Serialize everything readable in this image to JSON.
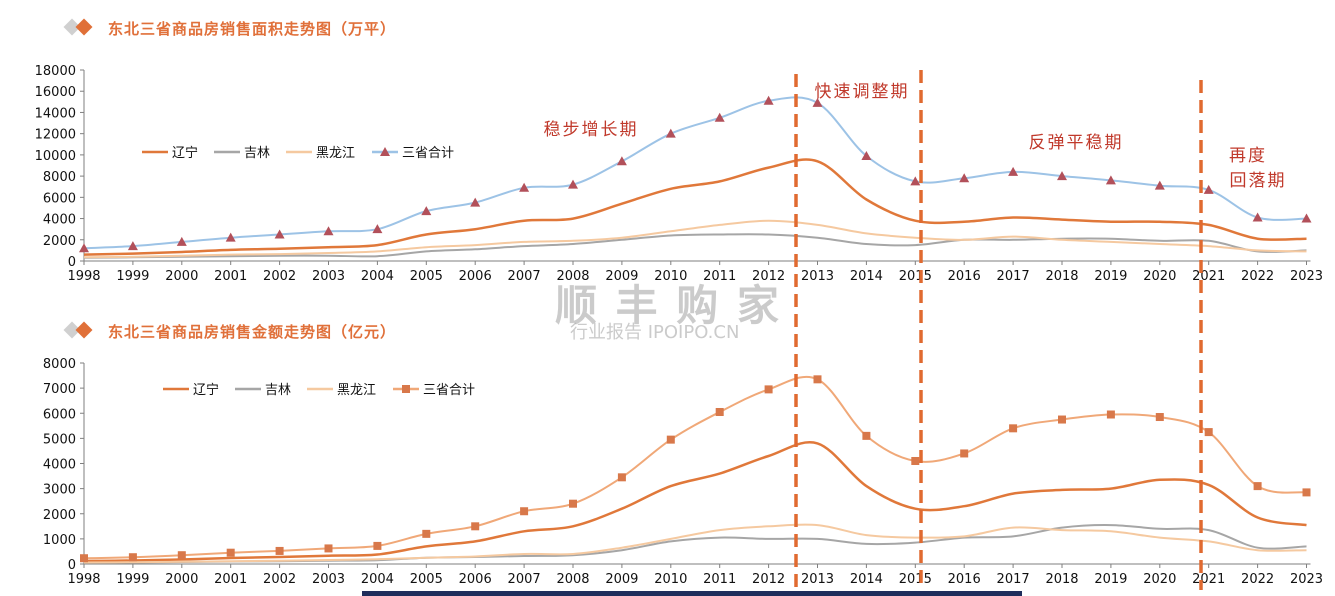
{
  "watermark": {
    "main": "顺 丰 购 家",
    "sub": "行业报告 IPOIPO.CN"
  },
  "phases": [
    "稳步增长期",
    "快速调整期",
    "反弹平稳期",
    "再度",
    "回落期"
  ],
  "colors": {
    "liaoning": "#e0783a",
    "jilin": "#a6a6a6",
    "heilongjiang": "#f5c9a0",
    "total_area": "#9dc3e6",
    "marker_tri": "#b2505a",
    "total_amount": "#f0a878",
    "marker_sq": "#d8784a",
    "dash": "#e06a30",
    "bar": "#1f2e5c"
  },
  "chart_data": [
    {
      "type": "line",
      "title": "东北三省商品房销售面积走势图（万平）",
      "x": [
        "1998",
        "1999",
        "2000",
        "2001",
        "2002",
        "2003",
        "2004",
        "2005",
        "2006",
        "2007",
        "2008",
        "2009",
        "2010",
        "2011",
        "2012",
        "2013",
        "2014",
        "2015",
        "2016",
        "2017",
        "2018",
        "2019",
        "2020",
        "2021",
        "2022",
        "2023"
      ],
      "ylim": [
        0,
        18000
      ],
      "yticks": [
        "0",
        "2000",
        "4000",
        "6000",
        "8000",
        "10000",
        "12000",
        "14000",
        "16000",
        "18000"
      ],
      "legend_position": "upper-left",
      "series": [
        {
          "name": "辽宁",
          "values": [
            600,
            700,
            850,
            1050,
            1150,
            1300,
            1500,
            2500,
            3000,
            3800,
            4000,
            5400,
            6800,
            7500,
            8800,
            9400,
            5800,
            3800,
            3700,
            4100,
            3900,
            3700,
            3700,
            3400,
            2100,
            2100
          ]
        },
        {
          "name": "吉林",
          "values": [
            300,
            350,
            400,
            450,
            500,
            500,
            450,
            900,
            1100,
            1400,
            1600,
            2000,
            2400,
            2500,
            2500,
            2200,
            1600,
            1500,
            2000,
            2000,
            2100,
            2100,
            1900,
            1900,
            900,
            1000
          ]
        },
        {
          "name": "黑龙江",
          "values": [
            350,
            400,
            500,
            600,
            650,
            750,
            900,
            1300,
            1500,
            1800,
            1900,
            2200,
            2800,
            3400,
            3800,
            3400,
            2600,
            2200,
            2000,
            2300,
            2000,
            1800,
            1600,
            1400,
            1000,
            900
          ]
        },
        {
          "name": "三省合计",
          "values": [
            1200,
            1400,
            1800,
            2200,
            2500,
            2800,
            3000,
            4700,
            5500,
            6900,
            7200,
            9400,
            12000,
            13500,
            15100,
            14900,
            9900,
            7500,
            7800,
            8400,
            8000,
            7600,
            7100,
            6700,
            4100,
            4000
          ]
        }
      ]
    },
    {
      "type": "line",
      "title": "东北三省商品房销售金额走势图（亿元）",
      "x": [
        "1998",
        "1999",
        "2000",
        "2001",
        "2002",
        "2003",
        "2004",
        "2005",
        "2006",
        "2007",
        "2008",
        "2009",
        "2010",
        "2011",
        "2012",
        "2013",
        "2014",
        "2015",
        "2016",
        "2017",
        "2018",
        "2019",
        "2020",
        "2021",
        "2022",
        "2023"
      ],
      "ylim": [
        0,
        8000
      ],
      "yticks": [
        "0",
        "1000",
        "2000",
        "3000",
        "4000",
        "5000",
        "6000",
        "7000",
        "8000"
      ],
      "legend_position": "upper-left",
      "series": [
        {
          "name": "辽宁",
          "values": [
            120,
            140,
            180,
            240,
            280,
            330,
            380,
            700,
            900,
            1300,
            1500,
            2200,
            3100,
            3600,
            4300,
            4800,
            3100,
            2200,
            2300,
            2800,
            2950,
            3000,
            3350,
            3150,
            1850,
            1550
          ]
        },
        {
          "name": "吉林",
          "values": [
            50,
            60,
            80,
            100,
            110,
            130,
            150,
            250,
            280,
            320,
            350,
            550,
            900,
            1050,
            1000,
            1000,
            800,
            850,
            1050,
            1100,
            1450,
            1550,
            1400,
            1350,
            650,
            700
          ]
        },
        {
          "name": "黑龙江",
          "values": [
            60,
            70,
            90,
            110,
            130,
            160,
            190,
            250,
            300,
            400,
            400,
            650,
            1000,
            1350,
            1500,
            1550,
            1150,
            1050,
            1100,
            1450,
            1350,
            1300,
            1050,
            900,
            550,
            550
          ]
        },
        {
          "name": "三省合计",
          "values": [
            230,
            270,
            350,
            450,
            520,
            620,
            720,
            1200,
            1500,
            2100,
            2400,
            3450,
            4950,
            6050,
            6950,
            7350,
            5100,
            4100,
            4400,
            5400,
            5750,
            5950,
            5850,
            5250,
            3100,
            2850
          ]
        }
      ]
    }
  ]
}
